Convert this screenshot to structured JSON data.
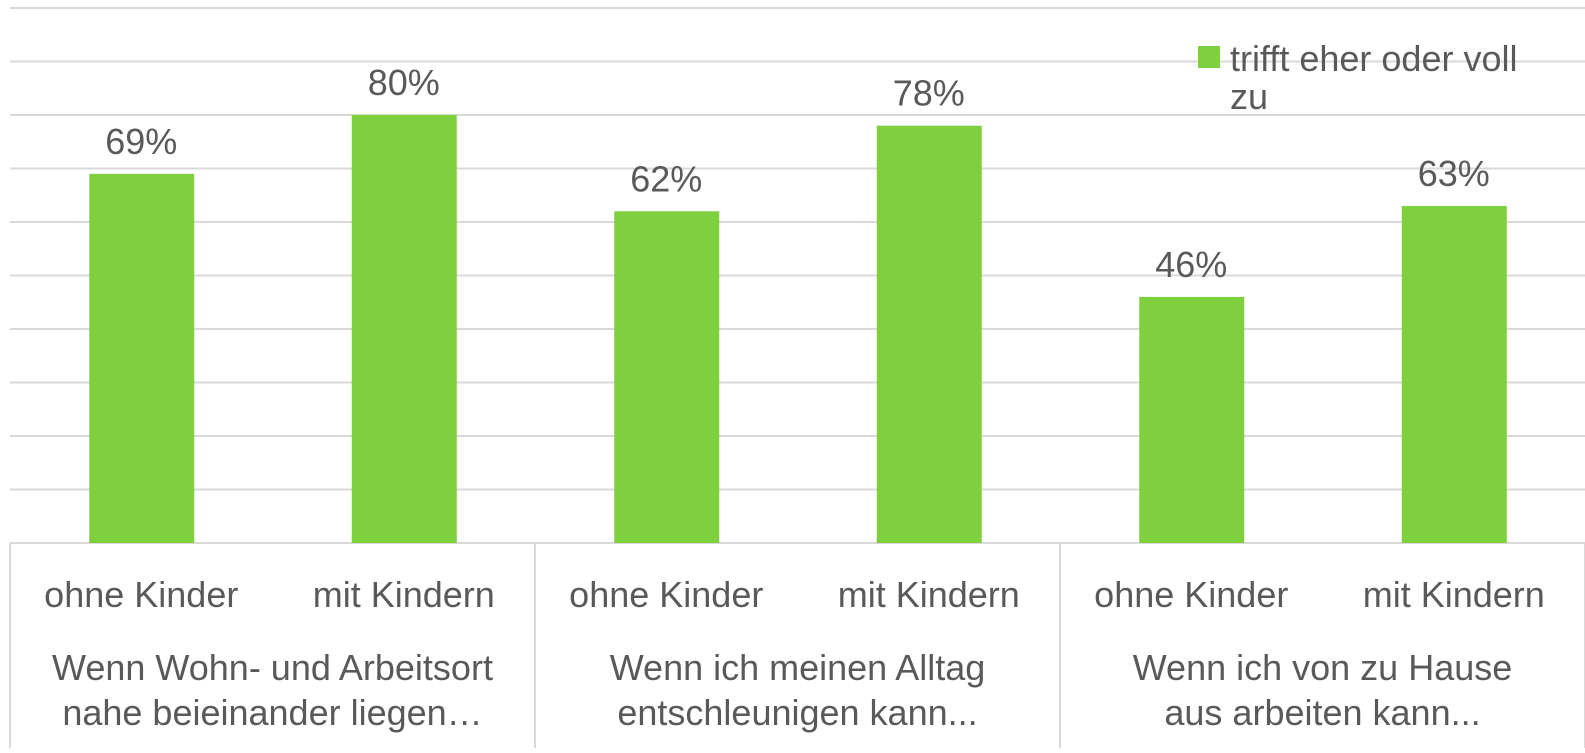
{
  "chart_data": {
    "type": "bar",
    "categories": [
      "ohne Kinder",
      "mit Kindern",
      "ohne Kinder",
      "mit Kindern",
      "ohne Kinder",
      "mit Kindern"
    ],
    "groups": [
      {
        "label_lines": [
          "Wenn Wohn- und Arbeitsort",
          "nahe beieinander liegen…"
        ]
      },
      {
        "label_lines": [
          "Wenn ich meinen Alltag",
          "entschleunigen kann..."
        ]
      },
      {
        "label_lines": [
          "Wenn ich von zu Hause",
          "aus arbeiten kann..."
        ]
      }
    ],
    "series": [
      {
        "name": "trifft eher oder voll zu",
        "color": "#7ed03e",
        "values": [
          69,
          80,
          62,
          78,
          46,
          63
        ],
        "value_labels": [
          "69%",
          "80%",
          "62%",
          "78%",
          "46%",
          "63%"
        ]
      }
    ],
    "ylim": [
      0,
      100
    ],
    "yticks": [
      0,
      10,
      20,
      30,
      40,
      50,
      60,
      70,
      80,
      90,
      100
    ],
    "grid": true,
    "legend": "top-right"
  }
}
